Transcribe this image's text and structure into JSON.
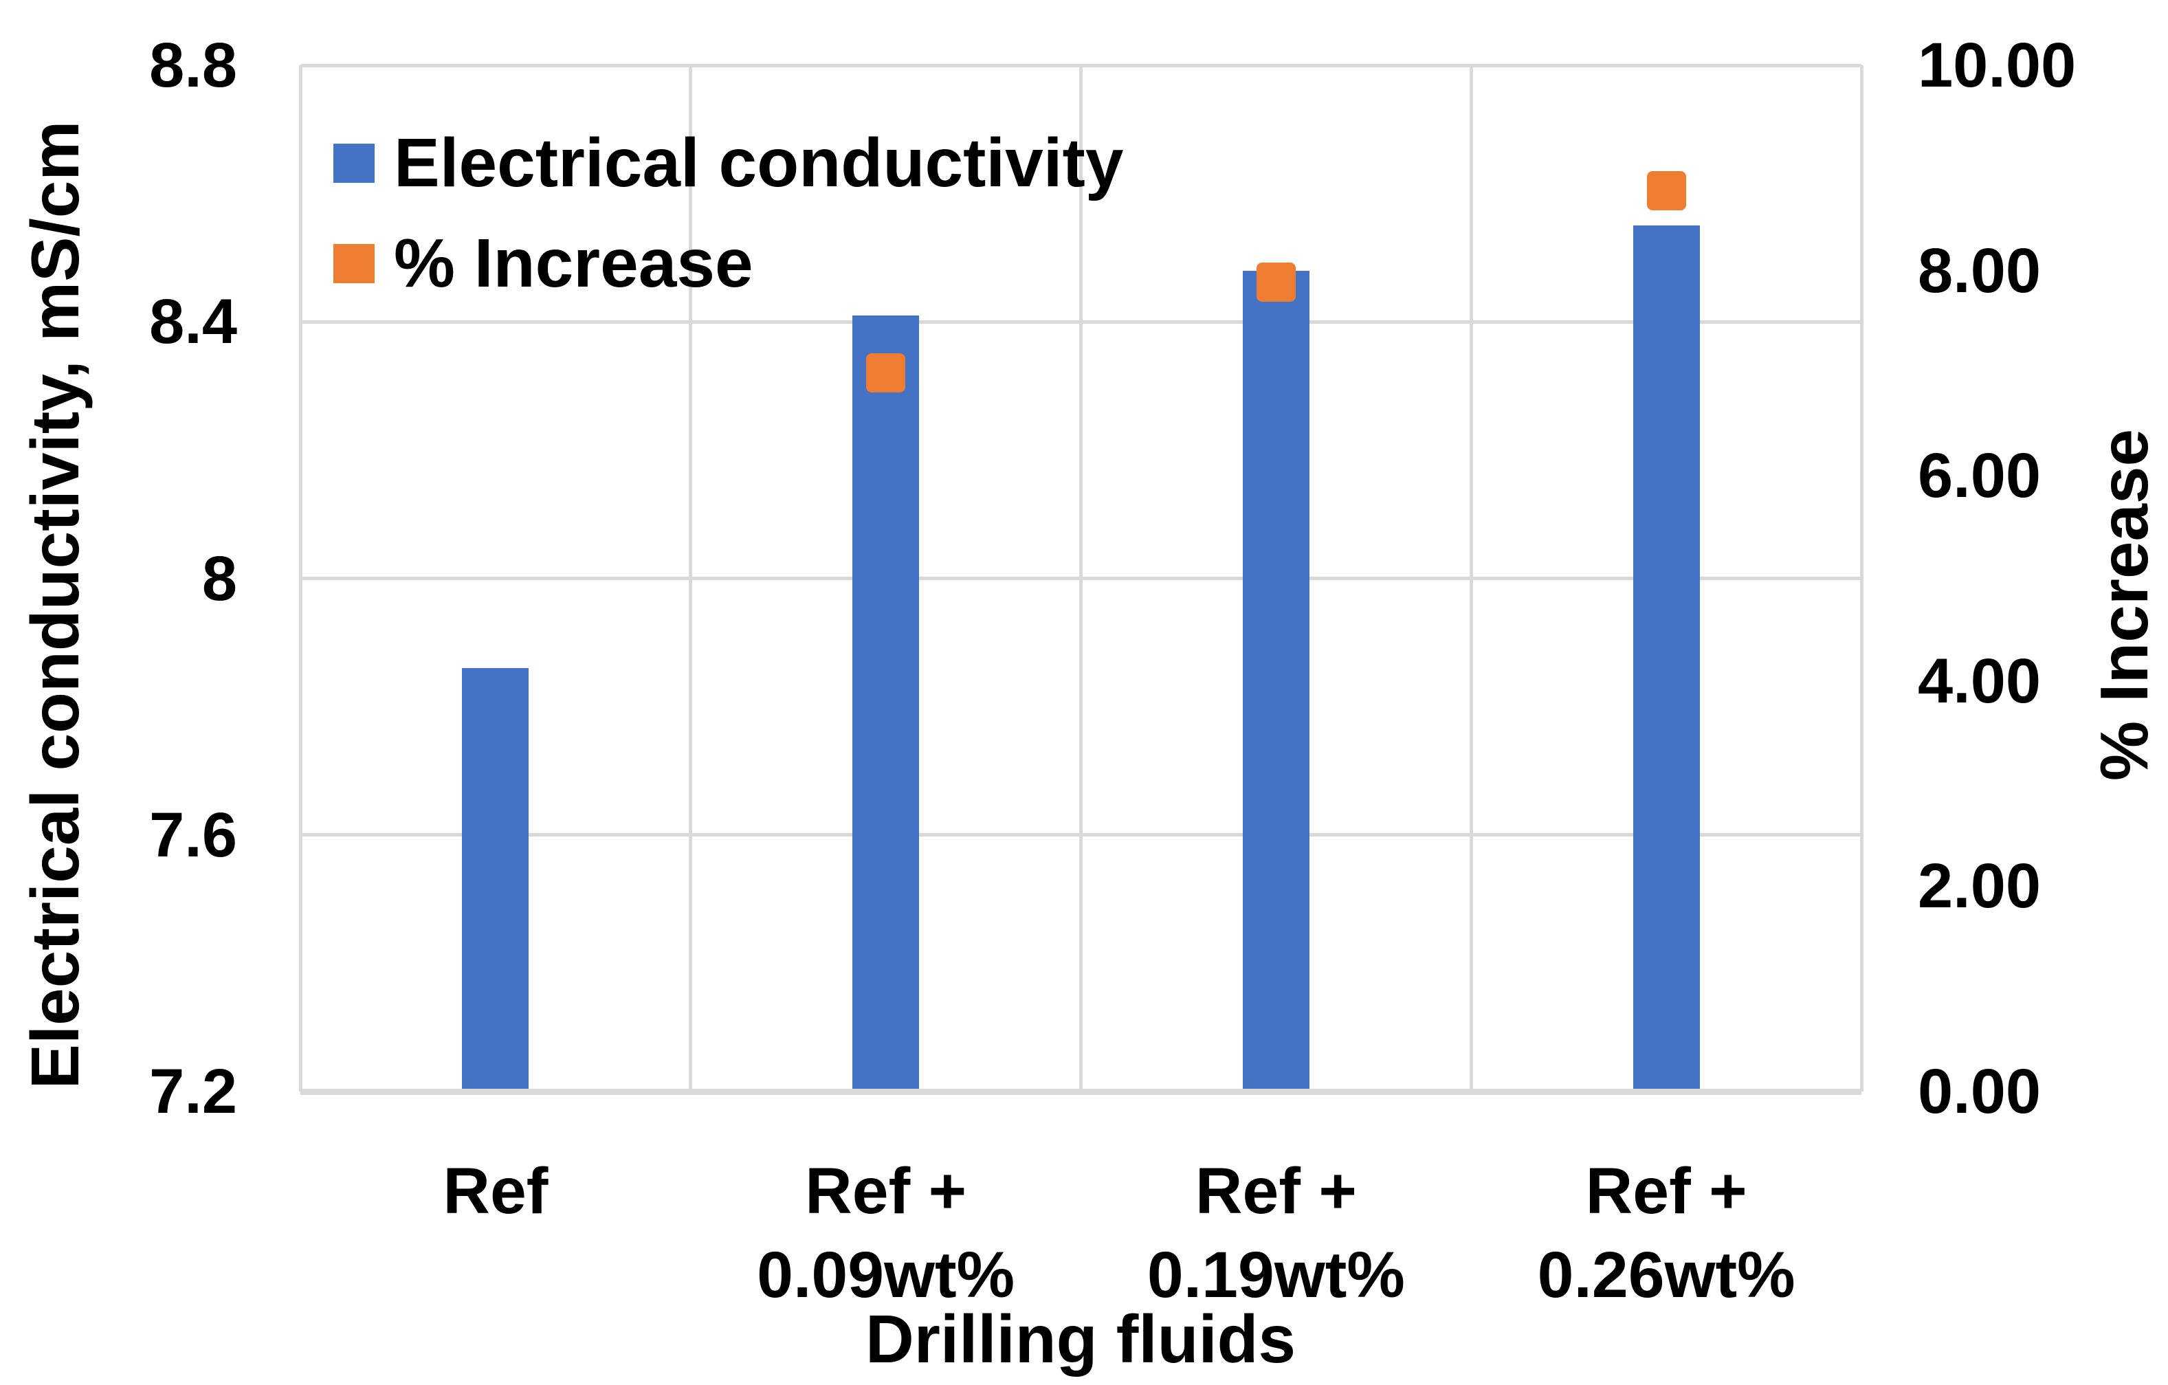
{
  "chart_data": {
    "type": "bar",
    "title": "",
    "categories": [
      "Ref",
      "Ref + 0.09wt%",
      "Ref + 0.19wt%",
      "Ref + 0.26wt%"
    ],
    "categories_lines": [
      [
        "Ref"
      ],
      [
        "Ref +",
        "0.09wt%"
      ],
      [
        "Ref +",
        "0.19wt%"
      ],
      [
        "Ref +",
        "0.26wt%"
      ]
    ],
    "xlabel": "Drilling fluids",
    "axis_left": {
      "label": "Electrical conductivity, mS/cm",
      "min": 7.2,
      "max": 8.8,
      "ticks": [
        {
          "v": 8.8,
          "t": "8.8"
        },
        {
          "v": 8.4,
          "t": "8.4"
        },
        {
          "v": 8.0,
          "t": "8"
        },
        {
          "v": 7.6,
          "t": "7.6"
        },
        {
          "v": 7.2,
          "t": "7.2"
        }
      ]
    },
    "axis_right": {
      "label": "% Increase",
      "min": 0,
      "max": 10,
      "ticks": [
        {
          "v": 10,
          "t": "10.00"
        },
        {
          "v": 8,
          "t": "8.00"
        },
        {
          "v": 6,
          "t": "6.00"
        },
        {
          "v": 4,
          "t": "4.00"
        },
        {
          "v": 2,
          "t": "2.00"
        },
        {
          "v": 0,
          "t": "0.00"
        }
      ]
    },
    "series": [
      {
        "name": "Electrical conductivity",
        "type": "bar",
        "axis": "left",
        "color": "#4472C4",
        "values": [
          7.86,
          8.41,
          8.48,
          8.55
        ]
      },
      {
        "name": "% Increase",
        "type": "square-marker",
        "axis": "right",
        "color": "#ED7D31",
        "values": [
          null,
          7.0,
          7.89,
          8.78
        ]
      }
    ],
    "legend_position": "top-left-inside",
    "grid": {
      "horizontal": true,
      "vertical": true,
      "color": "#D9D9D9"
    }
  }
}
